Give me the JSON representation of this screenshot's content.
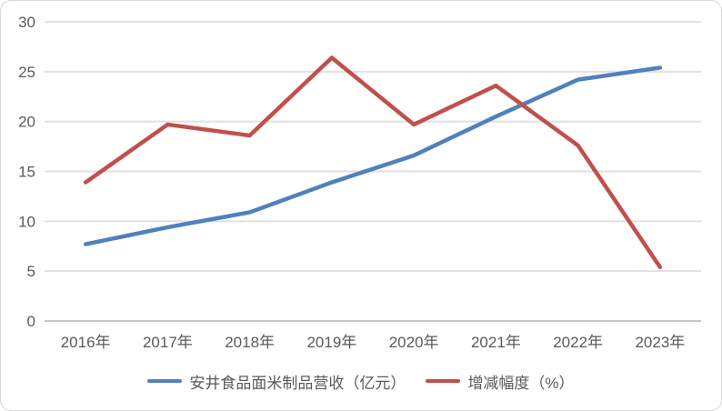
{
  "chart_data": {
    "type": "line",
    "categories": [
      "2016年",
      "2017年",
      "2018年",
      "2019年",
      "2020年",
      "2021年",
      "2022年",
      "2023年"
    ],
    "series": [
      {
        "name": "安井食品面米制品营收（亿元）",
        "color": "#4F81BD",
        "values": [
          7.7,
          9.4,
          10.9,
          13.9,
          16.6,
          20.5,
          24.2,
          25.4
        ]
      },
      {
        "name": "增减幅度（%）",
        "color": "#C0504D",
        "values": [
          13.9,
          19.7,
          18.6,
          26.4,
          19.7,
          23.6,
          17.6,
          5.4
        ]
      }
    ],
    "title": "",
    "xlabel": "",
    "ylabel": "",
    "ylim": [
      0,
      30
    ],
    "y_tick_step": 5,
    "y_tick_labels": [
      "0",
      "5",
      "10",
      "15",
      "20",
      "25",
      "30"
    ],
    "grid": true,
    "legend_position": "bottom"
  },
  "style_colors": {
    "gridline": "#e0e0e0",
    "zero_axis_line": "#c6c6c6",
    "tick_text": "#595959",
    "frame_border": "#d9d9d9",
    "background": "#ffffff"
  }
}
